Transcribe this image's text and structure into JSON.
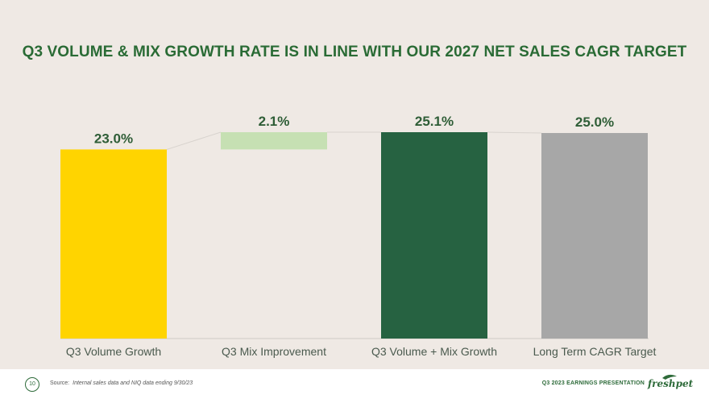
{
  "slide": {
    "title": "Q3 VOLUME & MIX GROWTH RATE IS IN LINE WITH OUR 2027 NET SALES CAGR TARGET"
  },
  "chart_data": {
    "type": "bar",
    "subtype": "waterfall",
    "categories": [
      "Q3 Volume Growth",
      "Q3 Mix Improvement",
      "Q3 Volume + Mix Growth",
      "Long Term CAGR Target"
    ],
    "bars": [
      {
        "category": "Q3 Volume Growth",
        "base": 0,
        "value": 23.0,
        "label": "23.0%",
        "color": "#ffd400"
      },
      {
        "category": "Q3 Mix Improvement",
        "base": 23.0,
        "value": 2.1,
        "label": "2.1%",
        "color": "#c6e0b3"
      },
      {
        "category": "Q3 Volume + Mix Growth",
        "base": 0,
        "value": 25.1,
        "label": "25.1%",
        "color": "#266241"
      },
      {
        "category": "Long Term CAGR Target",
        "base": 0,
        "value": 25.0,
        "label": "25.0%",
        "color": "#a7a7a7"
      }
    ],
    "ylim": [
      0,
      25.1
    ],
    "unit": "%",
    "grid": false,
    "legend": "none"
  },
  "footer": {
    "page_number": "10",
    "source_key": "Source:",
    "source_text": "Internal sales data and NIQ data ending 9/30/23",
    "presentation_label": "Q3 2023 EARNINGS PRESENTATION",
    "logo_text": "freshpet"
  },
  "colors": {
    "background": "#efe9e4",
    "title": "#2a6b35",
    "axis": "#cfcbc6",
    "connector": "#d8d3ce"
  }
}
